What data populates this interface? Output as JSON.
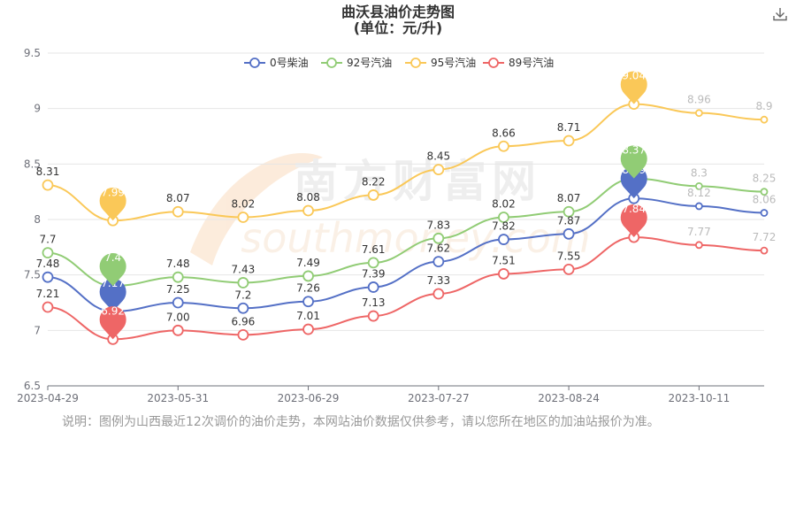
{
  "page": {
    "title_line1": "曲沃县油价走势图",
    "title_line2": "(单位：元/升)",
    "note": "说明：图例为山西最近12次调价的油价走势，本网站油价数据仅供参考，请以您所在地区的加油站报价为准。",
    "download_icon": "download-icon",
    "watermark_cn": "南方财富网",
    "watermark_en": "southmoney.com"
  },
  "chart_data": {
    "type": "line",
    "title": "曲沃县油价走势图",
    "subtitle": "(单位：元/升)",
    "x_tick_labels": [
      "2023-04-29",
      "2023-05-31",
      "2023-06-29",
      "2023-07-27",
      "2023-08-24",
      "2023-10-11"
    ],
    "ylim": [
      6.5,
      9.5
    ],
    "y_ticks": [
      "6.5",
      "7",
      "7.5",
      "8",
      "8.5",
      "9",
      "9.5"
    ],
    "grid": true,
    "legend_position": "top",
    "series": [
      {
        "name": "0号柴油",
        "color": "#5470c6",
        "labels": [
          "7.48",
          "7.17",
          "7.25",
          "7.2",
          "7.26",
          "7.39",
          "7.62",
          "7.82",
          "7.87",
          "8.19",
          "8.12",
          "8.06"
        ],
        "values": [
          7.48,
          7.17,
          7.25,
          7.2,
          7.26,
          7.39,
          7.62,
          7.82,
          7.87,
          8.19,
          8.12,
          8.06
        ],
        "max_index": 9,
        "min_index": 1
      },
      {
        "name": "92号汽油",
        "color": "#91cc75",
        "labels": [
          "7.7",
          "7.4",
          "7.48",
          "7.43",
          "7.49",
          "7.61",
          "7.83",
          "8.02",
          "8.07",
          "8.37",
          "8.3",
          "8.25"
        ],
        "values": [
          7.7,
          7.4,
          7.48,
          7.43,
          7.49,
          7.61,
          7.83,
          8.02,
          8.07,
          8.37,
          8.3,
          8.25
        ],
        "max_index": 9,
        "min_index": 1
      },
      {
        "name": "95号汽油",
        "color": "#fac858",
        "labels": [
          "8.31",
          "7.99",
          "8.07",
          "8.02",
          "8.08",
          "8.22",
          "8.45",
          "8.66",
          "8.71",
          "9.04",
          "8.96",
          "8.9"
        ],
        "values": [
          8.31,
          7.99,
          8.07,
          8.02,
          8.08,
          8.22,
          8.45,
          8.66,
          8.71,
          9.04,
          8.96,
          8.9
        ],
        "max_index": 9,
        "min_index": 1
      },
      {
        "name": "89号汽油",
        "color": "#ee6666",
        "labels": [
          "7.21",
          "6.92",
          "7.00",
          "6.96",
          "7.01",
          "7.13",
          "7.33",
          "7.51",
          "7.55",
          "7.84",
          "7.77",
          "7.72"
        ],
        "values": [
          7.21,
          6.92,
          7.0,
          6.96,
          7.01,
          7.13,
          7.33,
          7.51,
          7.55,
          7.84,
          7.77,
          7.72
        ],
        "max_index": 9,
        "min_index": 1
      }
    ]
  }
}
